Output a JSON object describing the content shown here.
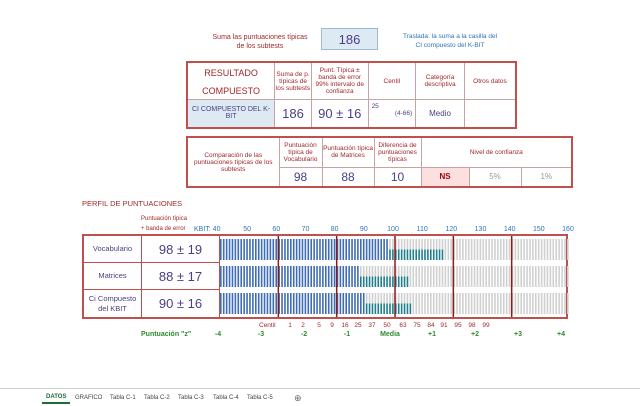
{
  "header": {
    "sum_label": "Suma las puntuaciones típicas de los subtests",
    "sum_value": "186",
    "transfer_note": "Traslada: la suma a la casilla del CI compuesto del K-BIT"
  },
  "composite_table": {
    "title": "RESULTADO COMPUESTO",
    "col_sum": "Suma de p. típicas de los subtests",
    "col_punt": "Punt. Típica ± banda de error 99% intervalo de confianza",
    "col_centil": "Centil",
    "col_cat": "Categoría descriptiva",
    "col_otros": "Otros datos",
    "row_label": "CI COMPUESTO DEL K-BIT",
    "row_sum": "186",
    "row_punt": "90 ± 16",
    "row_centil": "25",
    "row_centil_range": "(4-66)",
    "row_cat": "Medio",
    "row_otros": ""
  },
  "comparison_table": {
    "label": "Comparación de las puntuaciones típicas de los subtests",
    "col_vocab": "Puntuación típica de Vocabulario",
    "col_matrices": "Puntuación típica de Matrices",
    "col_diff": "Diferencia de puntuaciones típicas",
    "col_conf": "Nivel de confianza",
    "vocab_value": "98",
    "matrices_value": "88",
    "diff_value": "10",
    "ns_label": "NS",
    "conf_5": "5%",
    "conf_1": "1%"
  },
  "profile": {
    "title": "PERFIL DE PUNTUACIONES",
    "sub1": "Puntuación típica",
    "sub2": "+ banda de error",
    "kbit_label": "KBIT: 40",
    "scale_labels": [
      "50",
      "60",
      "70",
      "80",
      "90",
      "100",
      "110",
      "120",
      "130",
      "140",
      "150",
      "160"
    ],
    "rows": [
      {
        "label": "Vocabulario",
        "value": "98 ± 19",
        "score": 98,
        "band": 19
      },
      {
        "label": "Matrices",
        "value": "88 ± 17",
        "score": 88,
        "band": 17
      },
      {
        "label": "Ci Compuesto del KBIT",
        "value": "90 ± 16",
        "score": 90,
        "band": 16
      }
    ],
    "centil_label": "Centil",
    "centiles": [
      "1",
      "2",
      "5",
      "9",
      "16",
      "25",
      "37",
      "50",
      "63",
      "75",
      "84",
      "91",
      "95",
      "98",
      "99"
    ],
    "z_label": "Puntuación \"z\"",
    "z_values": [
      "-4",
      "-3",
      "-2",
      "-1",
      "Media",
      "+1",
      "+2",
      "+3",
      "+4"
    ]
  },
  "sheet_tabs": [
    "DATOS",
    "GRAFICO",
    "Tabla C-1",
    "Tabla C-2",
    "Tabla C-3",
    "Tabla C-4",
    "Tabla C-5"
  ],
  "add_sheet": "⊕"
}
